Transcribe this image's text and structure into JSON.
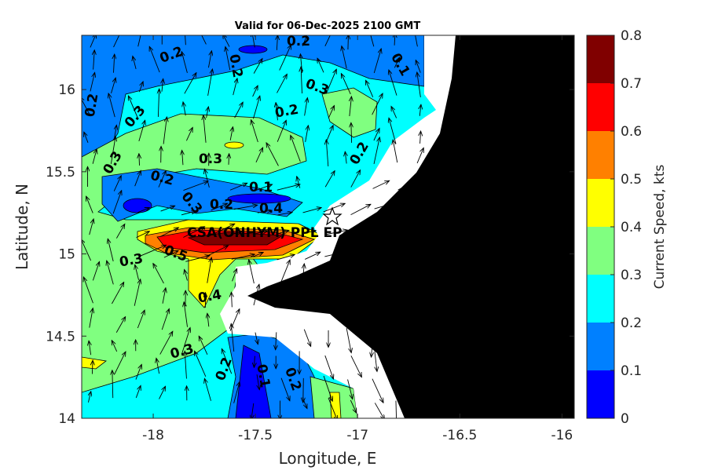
{
  "chart_data": {
    "type": "contour",
    "title": "Valid for 06-Dec-2025 2100 GMT",
    "xlabel": "Longitude, E",
    "ylabel": "Latitude, N",
    "xlim": [
      -18.35,
      -15.94
    ],
    "ylim": [
      14.0,
      16.33
    ],
    "xticks": [
      -18,
      -17.5,
      -17,
      -16.5,
      -16
    ],
    "xtick_labels": [
      "-18",
      "-17.5",
      "-17",
      "-16.5",
      "-16"
    ],
    "yticks": [
      14,
      14.5,
      15,
      15.5,
      16
    ],
    "ytick_labels": [
      "14",
      "14.5",
      "15",
      "15.5",
      "16"
    ],
    "colorbar": {
      "label": "Current Speed, kts",
      "range": [
        0,
        0.8
      ],
      "levels": [
        0,
        0.1,
        0.2,
        0.3,
        0.4,
        0.5,
        0.6,
        0.7,
        0.8
      ],
      "tick_labels": [
        "0",
        "0.1",
        "0.2",
        "0.3",
        "0.4",
        "0.5",
        "0.6",
        "0.7",
        "0.8"
      ],
      "colors": [
        "#0000ff",
        "#0080ff",
        "#00ffff",
        "#80ff80",
        "#ffff00",
        "#ff8000",
        "#ff0000",
        "#800000"
      ]
    },
    "contour_labels": [
      "0.2",
      "0.2",
      "0.2",
      "0.1",
      "0.2",
      "0.3",
      "0.3",
      "0.2",
      "0.3",
      "0.3",
      "0.2",
      "0.2",
      "0.1",
      "0.3",
      "0.2",
      "0.4",
      "0.5",
      "0.3",
      "0.4",
      "0.3",
      "0.2",
      "0.1",
      "0.2"
    ],
    "station": {
      "label": "CSA(ONHYM) PPL EP",
      "lon": -17.09,
      "lat": 15.22,
      "marker": "star"
    },
    "land_color": "#000000",
    "nodata_color": "#ffffff"
  }
}
